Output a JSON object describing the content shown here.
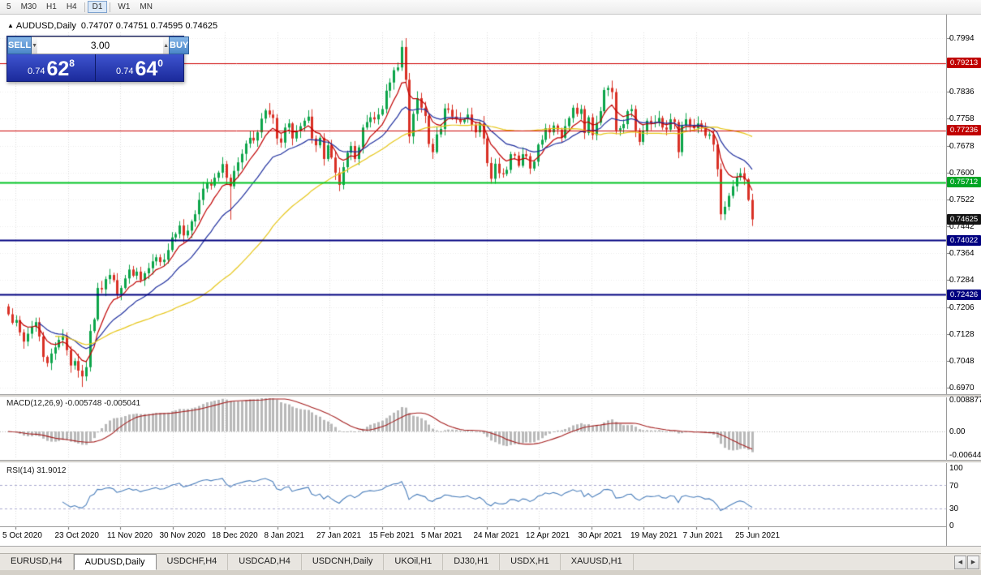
{
  "toolbar": {
    "timeframes": [
      "5",
      "M30",
      "H1",
      "H4",
      "D1",
      "W1",
      "MN"
    ],
    "active": "D1",
    "separators_after": [
      "H4",
      "D1"
    ]
  },
  "chart": {
    "symbol": "AUDUSD,Daily",
    "ohlc_text": "0.74707 0.74751 0.74595 0.74625"
  },
  "trade_panel": {
    "sell_label": "SELL",
    "buy_label": "BUY",
    "volume": "3.00",
    "sell_price": {
      "prefix": "0.74",
      "big": "62",
      "sup": "8"
    },
    "buy_price": {
      "prefix": "0.74",
      "big": "64",
      "sup": "0"
    }
  },
  "icons": {
    "symbol_marker": "▲",
    "spinner_up": "▲",
    "spinner_down": "▼",
    "tabs_left": "◀",
    "tabs_right": "▶"
  },
  "price_axis": {
    "ticks": [
      "0.7994",
      "0.7916",
      "0.7836",
      "0.7758",
      "0.7678",
      "0.7600",
      "0.7522",
      "0.7442",
      "0.7364",
      "0.7284",
      "0.7206",
      "0.7128",
      "0.7048",
      "0.6970"
    ]
  },
  "levels": [
    {
      "price": 0.79213,
      "label": "0.79213",
      "color": "#C00000",
      "line_color": "#CC0000",
      "line_width": 1
    },
    {
      "price": 0.77236,
      "label": "0.77236",
      "color": "#C00000",
      "line_color": "#CC0000",
      "line_width": 1
    },
    {
      "price": 0.75712,
      "label": "0.75712",
      "color": "#00A524",
      "line_color": "#00C424",
      "line_width": 2
    },
    {
      "price": 0.74022,
      "label": "0.74022",
      "color": "#000080",
      "line_color": "#000080",
      "line_width": 2
    },
    {
      "price": 0.72426,
      "label": "0.72426",
      "color": "#000080",
      "line_color": "#000080",
      "line_width": 2
    }
  ],
  "current_price": {
    "price": 0.74625,
    "label": "0.74625",
    "color": "#141414"
  },
  "macd": {
    "header": "MACD(12,26,9) -0.005748 -0.005041",
    "axis_labels": [
      "0.008877",
      "0.00",
      "-0.006445"
    ]
  },
  "rsi": {
    "header": "RSI(14) 31.9012",
    "axis_labels": [
      "100",
      "70",
      "30",
      "0"
    ],
    "levels": [
      70,
      30
    ]
  },
  "date_axis": {
    "labels": [
      "5 Oct 2020",
      "23 Oct 2020",
      "11 Nov 2020",
      "30 Nov 2020",
      "18 Dec 2020",
      "8 Jan 2021",
      "27 Jan 2021",
      "15 Feb 2021",
      "5 Mar 2021",
      "24 Mar 2021",
      "12 Apr 2021",
      "30 Apr 2021",
      "19 May 2021",
      "7 Jun 2021",
      "25 Jun 2021"
    ]
  },
  "tabs": {
    "items": [
      "EURUSD,H4",
      "AUDUSD,Daily",
      "USDCHF,H4",
      "USDCAD,H4",
      "USDCNH,Daily",
      "UKOil,H1",
      "DJ30,H1",
      "USDX,H1",
      "XAUUSD,H1"
    ],
    "active": "AUDUSD,Daily"
  },
  "chart_data": {
    "type": "candlestick",
    "symbol": "AUDUSD",
    "timeframe": "Daily",
    "last_bar": {
      "open": 0.74707,
      "high": 0.74751,
      "low": 0.74595,
      "close": 0.74625
    },
    "y_range": [
      0.697,
      0.7994
    ],
    "horizontal_levels": [
      0.79213,
      0.77236,
      0.75712,
      0.74022,
      0.72426
    ],
    "colors": {
      "up": "#0CA44A",
      "down": "#D93025",
      "ma_red": "#C00000",
      "ma_blue": "#1F2F9E",
      "ma_yellow": "#E6C619",
      "macd_hist": "#B8B8B8",
      "macd_signal": "#A52020",
      "rsi_line": "#4A7EBB"
    },
    "ma_periods": {
      "red": 8,
      "blue": 20,
      "yellow": 50
    },
    "macd_params": {
      "fast": 12,
      "slow": 26,
      "signal": 9,
      "main_value": -0.005748,
      "signal_value": -0.005041
    },
    "rsi_params": {
      "period": 14,
      "value": 31.9012
    },
    "closes": [
      0.7185,
      0.716,
      0.7168,
      0.7132,
      0.7105,
      0.7128,
      0.7148,
      0.7162,
      0.712,
      0.706,
      0.7042,
      0.707,
      0.7088,
      0.711,
      0.7122,
      0.708,
      0.7035,
      0.7048,
      0.702,
      0.7003,
      0.703,
      0.7136,
      0.717,
      0.7262,
      0.7258,
      0.7288,
      0.73,
      0.7285,
      0.7244,
      0.7262,
      0.729,
      0.7316,
      0.7298,
      0.731,
      0.7285,
      0.7305,
      0.732,
      0.734,
      0.7352,
      0.7338,
      0.7345,
      0.7373,
      0.741,
      0.742,
      0.7445,
      0.7416,
      0.743,
      0.7457,
      0.7478,
      0.752,
      0.7553,
      0.757,
      0.7562,
      0.7585,
      0.76,
      0.7625,
      0.7585,
      0.756,
      0.7605,
      0.763,
      0.7655,
      0.7685,
      0.7702,
      0.7694,
      0.7718,
      0.7758,
      0.7782,
      0.777,
      0.776,
      0.77,
      0.7688,
      0.7732,
      0.7744,
      0.77,
      0.7722,
      0.7736,
      0.7752,
      0.7764,
      0.77,
      0.768,
      0.7702,
      0.764,
      0.768,
      0.7644,
      0.76,
      0.7564,
      0.7616,
      0.7658,
      0.7678,
      0.764,
      0.7674,
      0.7732,
      0.7748,
      0.7762,
      0.7756,
      0.777,
      0.7786,
      0.784,
      0.7864,
      0.79,
      0.7908,
      0.7968,
      0.7872,
      0.7706,
      0.7772,
      0.7818,
      0.779,
      0.7766,
      0.7684,
      0.766,
      0.7712,
      0.7728,
      0.7788,
      0.7784,
      0.7764,
      0.7756,
      0.7748,
      0.7756,
      0.777,
      0.774,
      0.7718,
      0.7744,
      0.77,
      0.7628,
      0.7582,
      0.7626,
      0.7598,
      0.7596,
      0.7608,
      0.7654,
      0.765,
      0.762,
      0.7654,
      0.7648,
      0.7612,
      0.7632,
      0.7682,
      0.7696,
      0.773,
      0.7718,
      0.7738,
      0.7726,
      0.7702,
      0.7736,
      0.776,
      0.779,
      0.7772,
      0.7786,
      0.7716,
      0.7762,
      0.771,
      0.7746,
      0.778,
      0.7842,
      0.7848,
      0.7836,
      0.7724,
      0.773,
      0.7742,
      0.778,
      0.7786,
      0.7724,
      0.769,
      0.7722,
      0.7752,
      0.7744,
      0.7748,
      0.776,
      0.7732,
      0.7726,
      0.7756,
      0.7748,
      0.766,
      0.7738,
      0.7756,
      0.7738,
      0.773,
      0.7744,
      0.7734,
      0.7708,
      0.7712,
      0.7682,
      0.761,
      0.7478,
      0.75,
      0.7532,
      0.756,
      0.7586,
      0.7598,
      0.758,
      0.752,
      0.7463
    ]
  }
}
